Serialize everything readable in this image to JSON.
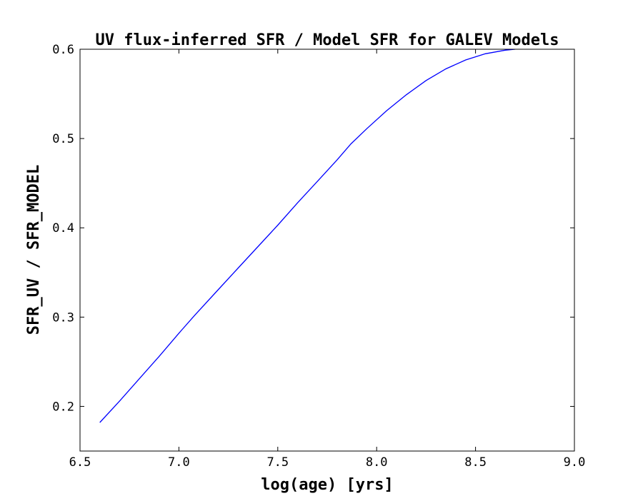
{
  "chart_data": {
    "type": "line",
    "title": "UV flux-inferred SFR / Model SFR for GALEV Models",
    "xlabel": "log(age) [yrs]",
    "ylabel": "SFR_UV / SFR_MODEL",
    "xlim": [
      6.5,
      9.0
    ],
    "ylim": [
      0.15,
      0.6
    ],
    "xticks": [
      "6.5",
      "7.0",
      "7.5",
      "8.0",
      "8.5",
      "9.0"
    ],
    "yticks": [
      "0.2",
      "0.3",
      "0.4",
      "0.5",
      "0.6"
    ],
    "grid": false,
    "series": [
      {
        "color": "#0000ff",
        "x": [
          6.6,
          6.7,
          6.8,
          6.9,
          7.0,
          7.08,
          7.2,
          7.3,
          7.4,
          7.5,
          7.6,
          7.7,
          7.8,
          7.87,
          7.95,
          8.05,
          8.15,
          8.25,
          8.35,
          8.45,
          8.55,
          8.65,
          8.7
        ],
        "y": [
          0.182,
          0.206,
          0.231,
          0.256,
          0.282,
          0.302,
          0.331,
          0.355,
          0.379,
          0.403,
          0.428,
          0.452,
          0.476,
          0.494,
          0.511,
          0.531,
          0.549,
          0.565,
          0.578,
          0.588,
          0.595,
          0.599,
          0.6
        ]
      }
    ]
  }
}
